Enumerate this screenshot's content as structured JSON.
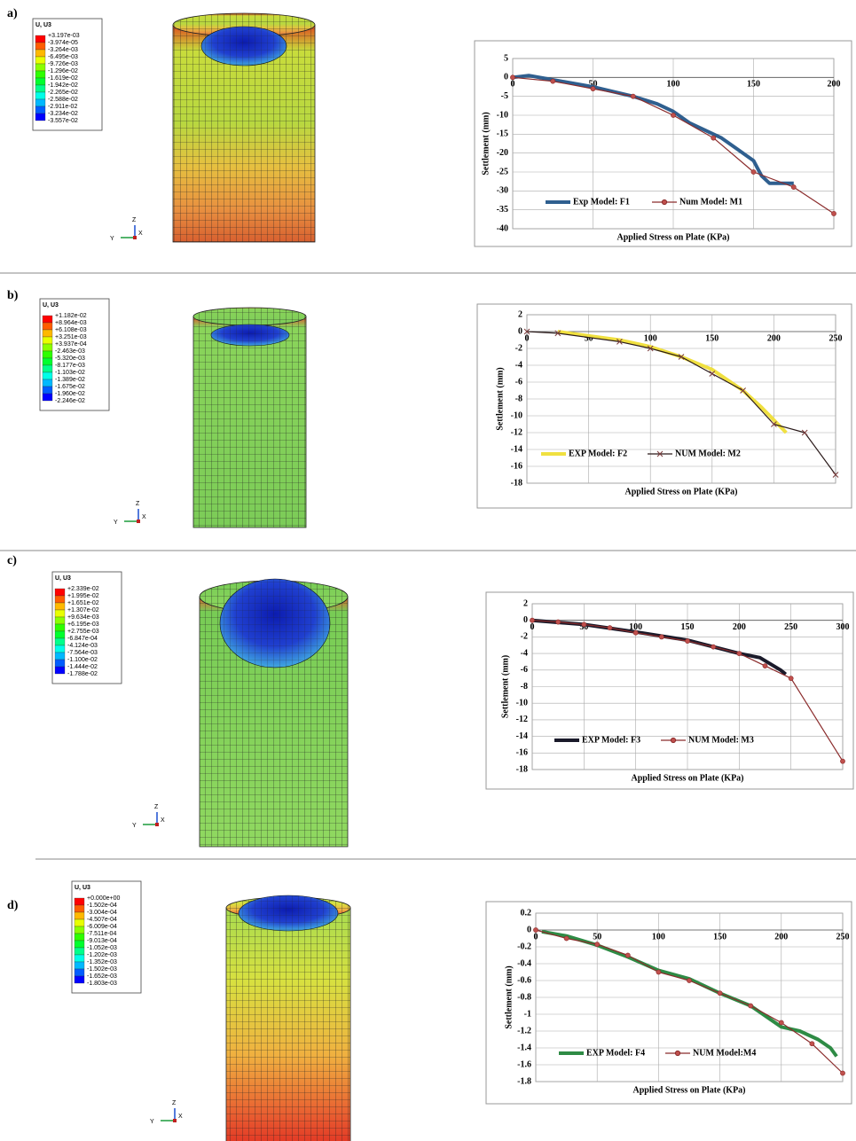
{
  "panels": [
    {
      "label": "a)",
      "contour": {
        "title": "U, U3",
        "values": [
          "+3.197e-03",
          "-3.974e-05",
          "-3.264e-03",
          "-6.495e-03",
          "-9.726e-03",
          "-1.296e-02",
          "-1.619e-02",
          "-1.942e-02",
          "-2.265e-02",
          "-2.588e-02",
          "-2.911e-02",
          "-3.234e-02",
          "-3.557e-02"
        ]
      },
      "triad": [
        "Z",
        "Y",
        "X"
      ]
    },
    {
      "label": "b)",
      "contour": {
        "title": "U, U3",
        "values": [
          "+1.182e-02",
          "+8.964e-03",
          "+6.108e-03",
          "+3.251e-03",
          "+3.937e-04",
          "-2.463e-03",
          "-5.320e-03",
          "-8.177e-03",
          "-1.103e-02",
          "-1.389e-02",
          "-1.675e-02",
          "-1.960e-02",
          "-2.246e-02"
        ]
      },
      "triad": [
        "Z",
        "Y",
        "X"
      ]
    },
    {
      "label": "c)",
      "contour": {
        "title": "U, U3",
        "values": [
          "+2.339e-02",
          "+1.995e-02",
          "+1.651e-02",
          "+1.307e-02",
          "+9.634e-03",
          "+6.195e-03",
          "+2.755e-03",
          "-6.847e-04",
          "-4.124e-03",
          "-7.564e-03",
          "-1.100e-02",
          "-1.444e-02",
          "-1.788e-02"
        ]
      },
      "triad": [
        "Z",
        "Y",
        "X"
      ]
    },
    {
      "label": "d)",
      "contour": {
        "title": "U, U3",
        "values": [
          "+0.000e+00",
          "-1.502e-04",
          "-3.004e-04",
          "-4.507e-04",
          "-6.009e-04",
          "-7.511e-04",
          "-9.013e-04",
          "-1.052e-03",
          "-1.202e-03",
          "-1.352e-03",
          "-1.502e-03",
          "-1.652e-03",
          "-1.803e-03"
        ]
      },
      "triad": [
        "Z",
        "Y",
        "X"
      ]
    }
  ],
  "chart_data": [
    {
      "type": "line",
      "x_label": "Applied  Stress on Plate (KPa)",
      "y_label": "Settlement (mm)",
      "xlim": [
        0,
        200
      ],
      "ylim": [
        -40,
        5
      ],
      "xticks": [
        0,
        50,
        100,
        150,
        200
      ],
      "yticks": [
        5,
        0,
        -5,
        -10,
        -15,
        -20,
        -25,
        -30,
        -35,
        -40
      ],
      "grid": true,
      "series": [
        {
          "name": "Exp Model: F1",
          "color": "#2f5f8f",
          "x": [
            0,
            10,
            30,
            50,
            75,
            90,
            100,
            110,
            120,
            130,
            140,
            150,
            155,
            160,
            175
          ],
          "values": [
            0,
            0.5,
            -1,
            -2.5,
            -5,
            -7,
            -9,
            -12,
            -14,
            -16,
            -19,
            -22,
            -26,
            -28,
            -28
          ]
        },
        {
          "name": "Num Model: M1",
          "color": "#8b2c2c",
          "marker": "circle",
          "x": [
            0,
            25,
            50,
            75,
            100,
            125,
            150,
            175,
            200
          ],
          "values": [
            0,
            -1,
            -3,
            -5,
            -10,
            -16,
            -25,
            -29,
            -36
          ]
        }
      ]
    },
    {
      "type": "line",
      "x_label": "Applied  Stress on Plate (KPa)",
      "y_label": "Settlement (mm)",
      "xlim": [
        0,
        250
      ],
      "ylim": [
        -18,
        2
      ],
      "xticks": [
        0,
        50,
        100,
        150,
        200,
        250
      ],
      "yticks": [
        2,
        0,
        -2,
        -4,
        -6,
        -8,
        -10,
        -12,
        -14,
        -16,
        -18
      ],
      "grid": true,
      "series": [
        {
          "name": "EXP Model: F2",
          "color": "#f0e040",
          "x": [
            25,
            50,
            75,
            100,
            125,
            150,
            175,
            190,
            200,
            210
          ],
          "values": [
            0,
            -0.5,
            -1,
            -1.8,
            -3,
            -4.5,
            -7,
            -9,
            -10.5,
            -12
          ]
        },
        {
          "name": "NUM Model: M2",
          "color": "#2a1a1a",
          "marker": "x",
          "x": [
            0,
            25,
            75,
            100,
            125,
            150,
            175,
            200,
            225,
            250
          ],
          "values": [
            0,
            -0.2,
            -1.2,
            -2,
            -3,
            -5,
            -7,
            -11,
            -12,
            -17
          ]
        }
      ]
    },
    {
      "type": "line",
      "x_label": "Applied  Stress on Plate (KPa)",
      "y_label": "Settlement (mm)",
      "xlim": [
        0,
        300
      ],
      "ylim": [
        -18,
        2
      ],
      "xticks": [
        0,
        50,
        100,
        150,
        200,
        250,
        300
      ],
      "yticks": [
        2,
        0,
        -2,
        -4,
        -6,
        -8,
        -10,
        -12,
        -14,
        -16,
        -18
      ],
      "grid": true,
      "series": [
        {
          "name": "EXP Model: F3",
          "color": "#1a1a2a",
          "x": [
            0,
            50,
            100,
            150,
            200,
            220,
            240,
            245
          ],
          "values": [
            0,
            -0.5,
            -1.4,
            -2.4,
            -4,
            -4.5,
            -6,
            -6.5
          ]
        },
        {
          "name": "NUM Model: M3",
          "color": "#8b2c2c",
          "marker": "circle",
          "x": [
            0,
            25,
            50,
            75,
            100,
            125,
            150,
            175,
            200,
            225,
            250,
            300
          ],
          "values": [
            0,
            -0.2,
            -0.5,
            -0.9,
            -1.5,
            -2,
            -2.5,
            -3.2,
            -4,
            -5.5,
            -7,
            -17
          ]
        }
      ]
    },
    {
      "type": "line",
      "x_label": "Applied  Stress on Plate (KPa)",
      "y_label": "Settlement (mm)",
      "xlim": [
        0,
        250
      ],
      "ylim": [
        -1.8,
        0.2
      ],
      "xticks": [
        0,
        50,
        100,
        150,
        200,
        250
      ],
      "yticks": [
        0.2,
        0,
        -0.2,
        -0.4,
        -0.6,
        -0.8,
        -1,
        -1.2,
        -1.4,
        -1.6,
        -1.8
      ],
      "grid": true,
      "series": [
        {
          "name": "EXP Model: F4",
          "color": "#2e8b45",
          "x": [
            5,
            25,
            50,
            75,
            100,
            125,
            150,
            175,
            190,
            200,
            215,
            230,
            240,
            245
          ],
          "values": [
            -0.02,
            -0.07,
            -0.18,
            -0.32,
            -0.48,
            -0.58,
            -0.75,
            -0.9,
            -1.05,
            -1.15,
            -1.2,
            -1.3,
            -1.4,
            -1.5
          ]
        },
        {
          "name": "NUM Model:M4",
          "color": "#8b2c2c",
          "marker": "circle",
          "x": [
            0,
            25,
            50,
            75,
            100,
            125,
            150,
            175,
            200,
            225,
            250
          ],
          "values": [
            0,
            -0.1,
            -0.17,
            -0.3,
            -0.5,
            -0.6,
            -0.75,
            -0.9,
            -1.1,
            -1.35,
            -1.7
          ]
        }
      ]
    }
  ]
}
